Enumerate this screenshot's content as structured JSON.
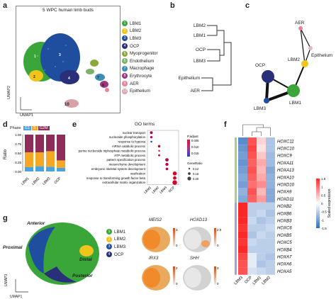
{
  "panels": {
    "a": "a",
    "b": "b",
    "c": "c",
    "d": "d",
    "e": "e",
    "f": "f",
    "g": "g"
  },
  "panel_a": {
    "title": "5 WPC human limb buds",
    "xaxis": "UMAP1",
    "yaxis": "UMAP2",
    "clusters": [
      {
        "num": "1",
        "name": "LBM1",
        "color": "#3aa63a"
      },
      {
        "num": "2",
        "name": "LBM2",
        "color": "#f0c419"
      },
      {
        "num": "3",
        "name": "LBM3",
        "color": "#1f4e9e"
      },
      {
        "num": "4",
        "name": "OCP",
        "color": "#2a2f7a"
      },
      {
        "num": "5",
        "name": "Myoprogenitor",
        "color": "#8aa83a"
      },
      {
        "num": "6",
        "name": "Endothelium",
        "color": "#7fb06a"
      },
      {
        "num": "7",
        "name": "Macrophage",
        "color": "#3b8fb8"
      },
      {
        "num": "8",
        "name": "Erythrocyte",
        "color": "#a0357f"
      },
      {
        "num": "9",
        "name": "AER",
        "color": "#e8839a"
      },
      {
        "num": "10",
        "name": "Epithelium",
        "color": "#d9a0a8"
      }
    ],
    "cluster_labels": [
      "1",
      "2",
      "3",
      "4",
      "7",
      "8",
      "10"
    ]
  },
  "panel_b": {
    "leaves": [
      "LBM2",
      "LBM1",
      "OCP",
      "LBM3",
      "Epithelium",
      "AER"
    ]
  },
  "panel_c": {
    "nodes": [
      {
        "name": "AER",
        "color": "#e8839a"
      },
      {
        "name": "OCP",
        "color": "#2a2f7a"
      },
      {
        "name": "LBM2",
        "color": "#f0c419"
      },
      {
        "name": "Epithelium",
        "color": "#e4b8c0"
      },
      {
        "name": "LBM3",
        "color": "#1f4e9e"
      },
      {
        "name": "LBM1",
        "color": "#3aa63a"
      }
    ]
  },
  "panel_d": {
    "legend_title": "Phase",
    "phases": [
      {
        "name": "G1",
        "color": "#4aa3df"
      },
      {
        "name": "S",
        "color": "#f5a623"
      },
      {
        "name": "G2M",
        "color": "#8e2c5a"
      }
    ],
    "ylabel": "Ratio"
  },
  "chart_data": [
    {
      "type": "bar",
      "stacked": true,
      "categories": [
        "LBM1",
        "LBM2",
        "LBM3",
        "OCP"
      ],
      "series": [
        {
          "name": "G1",
          "values": [
            0.12,
            0.14,
            0.13,
            0.1
          ]
        },
        {
          "name": "S",
          "values": [
            0.4,
            0.38,
            0.42,
            0.2
          ]
        },
        {
          "name": "G2M",
          "values": [
            0.48,
            0.48,
            0.45,
            0.7
          ]
        }
      ],
      "title": "",
      "xlabel": "",
      "ylabel": "Ratio",
      "ylim": [
        0,
        1
      ],
      "yticks": [
        "0.00",
        "0.25",
        "0.50",
        "0.75",
        "1.00"
      ]
    },
    {
      "type": "scatter",
      "title": "GO terms",
      "categories": [
        "LBM1",
        "LBM2",
        "LBM3",
        "OCP"
      ],
      "terms": [
        "nuclear transport",
        "nucleotide phosphorylation",
        "response to hypoxia",
        "mRNA catabolic process",
        "purine nucleoside triphosphate metabolic process",
        "ATP metabolic process",
        "pattern specification process",
        "mesenchyme development",
        "embryonic skeletal system development",
        "ossification",
        "response to transforming growth factor beta",
        "extracellular matrix organization"
      ],
      "points": [
        {
          "term": 0,
          "cat": 0,
          "ratio": 0.14,
          "padj": 0.01
        },
        {
          "term": 1,
          "cat": 0,
          "ratio": 0.12,
          "padj": 0.012
        },
        {
          "term": 2,
          "cat": 0,
          "ratio": 0.1,
          "padj": 0.002
        },
        {
          "term": 3,
          "cat": 1,
          "ratio": 0.13,
          "padj": 0.012
        },
        {
          "term": 4,
          "cat": 1,
          "ratio": 0.1,
          "padj": 0.014
        },
        {
          "term": 5,
          "cat": 1,
          "ratio": 0.11,
          "padj": 0.013
        },
        {
          "term": 6,
          "cat": 2,
          "ratio": 0.16,
          "padj": 0.011
        },
        {
          "term": 7,
          "cat": 2,
          "ratio": 0.15,
          "padj": 0.012
        },
        {
          "term": 8,
          "cat": 2,
          "ratio": 0.13,
          "padj": 0.012
        },
        {
          "term": 9,
          "cat": 3,
          "ratio": 0.18,
          "padj": 0.014
        },
        {
          "term": 10,
          "cat": 3,
          "ratio": 0.16,
          "padj": 0.014
        },
        {
          "term": 11,
          "cat": 3,
          "ratio": 0.2,
          "padj": 0.014
        }
      ],
      "padj_legend": {
        "title": "P.adjust",
        "ticks": [
          "0.005",
          "0.010",
          "0.015"
        ]
      },
      "ratio_legend": {
        "title": "GeneRatio",
        "ticks": [
          "0.12",
          "0.16",
          "0.20"
        ]
      }
    },
    {
      "type": "heatmap",
      "columns": [
        "LBM3",
        "OCP",
        "LBM1",
        "LBM2"
      ],
      "rows": [
        "HOXC11",
        "HOXC10",
        "HOXC9",
        "HOXA11",
        "HOXA13",
        "HOXA10",
        "HOXD10",
        "HOXA9",
        "HOXD11",
        "HOXB2",
        "HOXB6",
        "HOXB3",
        "HOXC6",
        "HOXB5",
        "HOXC5",
        "HOXB4",
        "HOXA7",
        "HOXA6",
        "HOXA5"
      ],
      "values": [
        [
          -1.2,
          1.2,
          0.3,
          -0.6
        ],
        [
          -1.1,
          1.3,
          0.2,
          -0.6
        ],
        [
          -1.0,
          1.2,
          0.4,
          -0.7
        ],
        [
          -1.1,
          1.1,
          0.6,
          -0.7
        ],
        [
          -1.0,
          1.2,
          0.5,
          -0.9
        ],
        [
          -0.9,
          1.1,
          0.6,
          -0.8
        ],
        [
          -1.0,
          1.0,
          0.8,
          -0.8
        ],
        [
          -0.8,
          1.2,
          0.5,
          -0.9
        ],
        [
          -0.9,
          1.1,
          0.7,
          -0.9
        ],
        [
          1.5,
          -0.5,
          -0.5,
          -0.5
        ],
        [
          1.5,
          -0.5,
          -0.4,
          -0.6
        ],
        [
          1.5,
          -0.4,
          -0.6,
          -0.5
        ],
        [
          1.4,
          -0.5,
          -0.5,
          -0.4
        ],
        [
          1.5,
          -0.6,
          -0.4,
          -0.5
        ],
        [
          1.4,
          -0.4,
          -0.5,
          -0.5
        ],
        [
          1.5,
          -0.5,
          -0.5,
          -0.5
        ],
        [
          1.3,
          -0.2,
          -0.5,
          -0.6
        ],
        [
          1.2,
          -0.2,
          -0.6,
          -0.5
        ],
        [
          1.2,
          -0.3,
          -0.4,
          -0.5
        ]
      ],
      "colorbar": {
        "title": "Scaled expression",
        "ticks": [
          "1.5",
          "1",
          "0.5",
          "0",
          "-0.5",
          "-1",
          "-1.5"
        ],
        "range": [
          -1.5,
          1.5
        ]
      }
    }
  ],
  "panel_g": {
    "directions": {
      "anterior": "Anterior",
      "proximal": "Proximal",
      "distal": "Distal",
      "posterior": "Posterior"
    },
    "xaxis": "UMAP1",
    "yaxis": "UMAP3",
    "legend": [
      {
        "num": "1",
        "name": "LBM1",
        "color": "#3aa63a"
      },
      {
        "num": "2",
        "name": "LBM2",
        "color": "#f0c419"
      },
      {
        "num": "3",
        "name": "LBM3",
        "color": "#1f4e9e"
      },
      {
        "num": "4",
        "name": "OCP",
        "color": "#2a2f7a"
      }
    ],
    "genes": [
      {
        "name": "MEIS2",
        "max": "3",
        "min": "0"
      },
      {
        "name": "HOXD13",
        "max": "2.0",
        "min": "0"
      },
      {
        "name": "IRX3",
        "max": "2",
        "min": "0"
      },
      {
        "name": "SHH",
        "max": "3",
        "min": "0"
      }
    ]
  }
}
